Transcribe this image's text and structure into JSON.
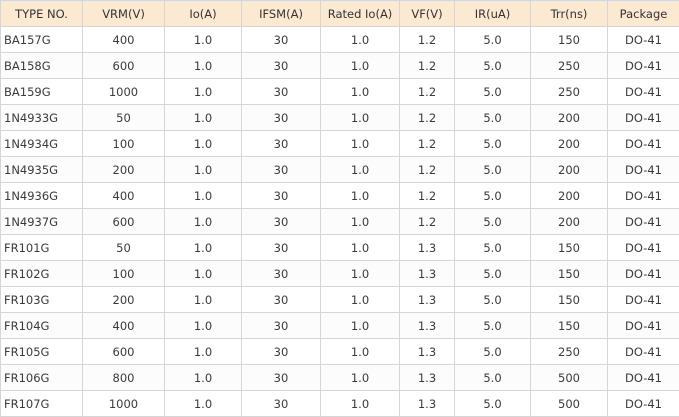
{
  "table": {
    "headers": [
      "TYPE NO.",
      "VRM(V)",
      "Io(A)",
      "IFSM(A)",
      "Rated Io(A)",
      "VF(V)",
      "IR(uA)",
      "Trr(ns)",
      "Package"
    ],
    "rows": [
      [
        "BA157G",
        "400",
        "1.0",
        "30",
        "1.0",
        "1.2",
        "5.0",
        "150",
        "DO-41"
      ],
      [
        "BA158G",
        "600",
        "1.0",
        "30",
        "1.0",
        "1.2",
        "5.0",
        "250",
        "DO-41"
      ],
      [
        "BA159G",
        "1000",
        "1.0",
        "30",
        "1.0",
        "1.2",
        "5.0",
        "250",
        "DO-41"
      ],
      [
        "1N4933G",
        "50",
        "1.0",
        "30",
        "1.0",
        "1.2",
        "5.0",
        "200",
        "DO-41"
      ],
      [
        "1N4934G",
        "100",
        "1.0",
        "30",
        "1.0",
        "1.2",
        "5.0",
        "200",
        "DO-41"
      ],
      [
        "1N4935G",
        "200",
        "1.0",
        "30",
        "1.0",
        "1.2",
        "5.0",
        "200",
        "DO-41"
      ],
      [
        "1N4936G",
        "400",
        "1.0",
        "30",
        "1.0",
        "1.2",
        "5.0",
        "200",
        "DO-41"
      ],
      [
        "1N4937G",
        "600",
        "1.0",
        "30",
        "1.0",
        "1.2",
        "5.0",
        "200",
        "DO-41"
      ],
      [
        "FR101G",
        "50",
        "1.0",
        "30",
        "1.0",
        "1.3",
        "5.0",
        "150",
        "DO-41"
      ],
      [
        "FR102G",
        "100",
        "1.0",
        "30",
        "1.0",
        "1.3",
        "5.0",
        "150",
        "DO-41"
      ],
      [
        "FR103G",
        "200",
        "1.0",
        "30",
        "1.0",
        "1.3",
        "5.0",
        "150",
        "DO-41"
      ],
      [
        "FR104G",
        "400",
        "1.0",
        "30",
        "1.0",
        "1.3",
        "5.0",
        "150",
        "DO-41"
      ],
      [
        "FR105G",
        "600",
        "1.0",
        "30",
        "1.0",
        "1.3",
        "5.0",
        "250",
        "DO-41"
      ],
      [
        "FR106G",
        "800",
        "1.0",
        "30",
        "1.0",
        "1.3",
        "5.0",
        "500",
        "DO-41"
      ],
      [
        "FR107G",
        "1000",
        "1.0",
        "30",
        "1.0",
        "1.3",
        "5.0",
        "500",
        "DO-41"
      ]
    ]
  },
  "colors": {
    "header_bg": "#fce9d2",
    "border": "#d6d6d6",
    "text": "#3a3a3a"
  }
}
